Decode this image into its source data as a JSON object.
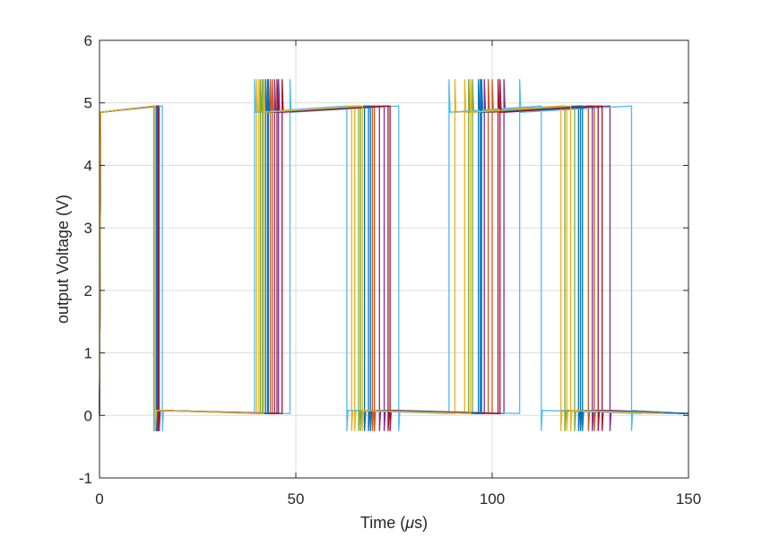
{
  "chart_data": {
    "type": "line",
    "title": "",
    "xlabel_main": "Time (",
    "xlabel_mu": "μ",
    "xlabel_tail": "s)",
    "ylabel": "output Voltage (V)",
    "xlim": [
      0,
      150
    ],
    "ylim": [
      -1,
      6
    ],
    "x_ticks": [
      0,
      50,
      100,
      150
    ],
    "y_ticks": [
      -1,
      0,
      1,
      2,
      3,
      4,
      5,
      6
    ],
    "x_tick_labels": [
      "0",
      "50",
      "100",
      "150"
    ],
    "y_tick_labels": [
      "-1",
      "0",
      "1",
      "2",
      "3",
      "4",
      "5",
      "6"
    ],
    "grid": true,
    "legend": "none",
    "waveform": {
      "high_start": 4.85,
      "high_end": 4.95,
      "overshoot_peak": 5.38,
      "low_start": 0.08,
      "low_end": 0.03,
      "undershoot_min": -0.25,
      "rise_time": 0.3,
      "initial_rise_from": 0.0
    },
    "series": [
      {
        "color": "#0072BD",
        "transitions": [
          0,
          14.2,
          42.3,
          67.5,
          97.3,
          122.0,
          150.0
        ]
      },
      {
        "color": "#D95319",
        "transitions": [
          0,
          14.6,
          44.0,
          69.5,
          99.0,
          124.5,
          150.0
        ]
      },
      {
        "color": "#EDB120",
        "transitions": [
          0,
          14.0,
          40.6,
          65.0,
          93.0,
          119.0,
          142.5
        ]
      },
      {
        "color": "#7E2F8E",
        "transitions": [
          0,
          15.2,
          45.6,
          72.5,
          103.0,
          130.0,
          150.0
        ]
      },
      {
        "color": "#77AC30",
        "transitions": [
          0,
          13.9,
          41.5,
          66.5,
          95.0,
          121.0,
          150.0
        ]
      },
      {
        "color": "#4DBEEE",
        "transitions": [
          0,
          16.0,
          48.5,
          76.2,
          107.0,
          135.5,
          150.0
        ]
      },
      {
        "color": "#A2142F",
        "transitions": [
          0,
          14.8,
          46.5,
          74.0,
          101.5,
          128.0,
          150.0
        ]
      },
      {
        "color": "#0072BD",
        "transitions": [
          0,
          14.4,
          42.8,
          68.5,
          96.5,
          123.0,
          150.0
        ]
      },
      {
        "color": "#D95319",
        "transitions": [
          0,
          14.7,
          43.5,
          70.0,
          100.0,
          126.0,
          150.0
        ]
      },
      {
        "color": "#EDB120",
        "transitions": [
          0,
          14.1,
          40.0,
          64.2,
          90.5,
          117.5,
          141.0
        ]
      },
      {
        "color": "#7E2F8E",
        "transitions": [
          0,
          15.0,
          44.6,
          71.3,
          98.0,
          125.5,
          150.0
        ]
      },
      {
        "color": "#77AC30",
        "transitions": [
          0,
          14.3,
          41.0,
          66.0,
          94.0,
          118.5,
          150.0
        ]
      },
      {
        "color": "#4DBEEE",
        "transitions": [
          0,
          13.8,
          39.5,
          63.0,
          89.0,
          112.5,
          138.0
        ]
      },
      {
        "color": "#A2142F",
        "transitions": [
          0,
          14.9,
          45.2,
          73.5,
          102.0,
          127.0,
          150.0
        ]
      },
      {
        "color": "#0072BD",
        "transitions": [
          0,
          14.5,
          43.0,
          69.0,
          97.0,
          122.5,
          150.0
        ]
      },
      {
        "color": "#EDB120",
        "transitions": [
          0,
          14.2,
          41.8,
          67.0,
          94.5,
          120.0,
          144.0
        ]
      }
    ]
  }
}
